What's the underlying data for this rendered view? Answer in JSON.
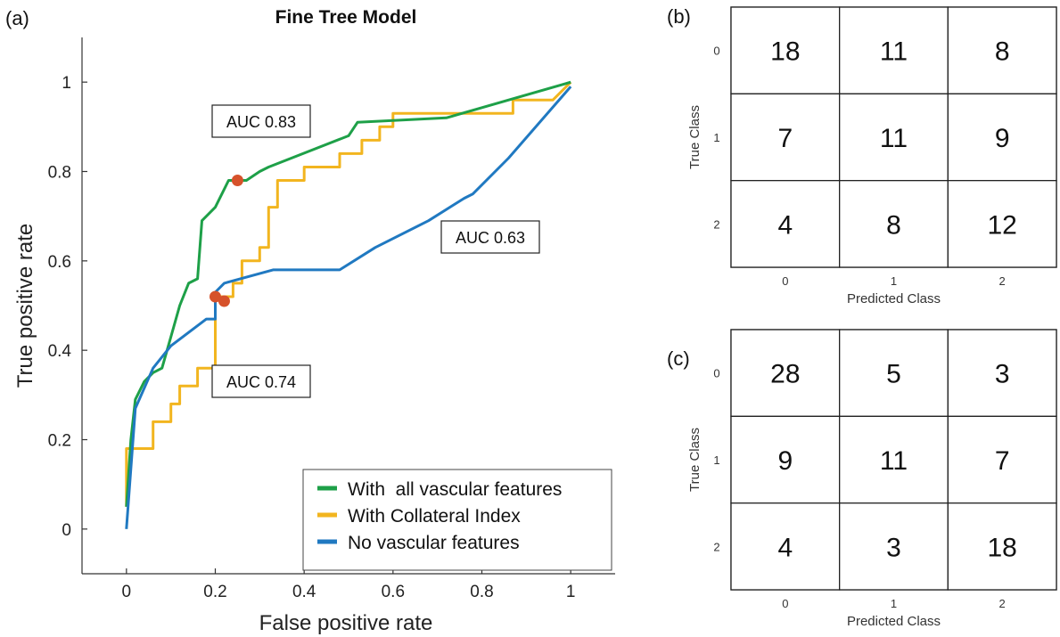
{
  "panels": {
    "a": "(a)",
    "b": "(b)",
    "c": "(c)"
  },
  "chart_data": [
    {
      "type": "line",
      "title": "Fine Tree Model",
      "xlabel": "False positive rate",
      "ylabel": "True positive rate",
      "xlim": [
        -0.1,
        1.1
      ],
      "ylim": [
        -0.1,
        1.1
      ],
      "xticks": [
        0,
        0.2,
        0.4,
        0.6,
        0.8,
        1
      ],
      "xtick_labels": [
        "0",
        "0.2",
        "0.4",
        "0.6",
        "0.8",
        "1"
      ],
      "yticks": [
        0,
        0.2,
        0.4,
        0.6,
        0.8,
        1
      ],
      "ytick_labels": [
        "0",
        "0.2",
        "0.4",
        "0.6",
        "0.8",
        "1"
      ],
      "grid": false,
      "legend_position": "bottom-right",
      "series": [
        {
          "name": "With  all vascular features",
          "color": "#1ea048",
          "points": [
            [
              0,
              0.05
            ],
            [
              0.01,
              0.2
            ],
            [
              0.02,
              0.29
            ],
            [
              0.04,
              0.33
            ],
            [
              0.06,
              0.35
            ],
            [
              0.08,
              0.36
            ],
            [
              0.1,
              0.43
            ],
            [
              0.12,
              0.5
            ],
            [
              0.14,
              0.55
            ],
            [
              0.16,
              0.56
            ],
            [
              0.17,
              0.69
            ],
            [
              0.2,
              0.72
            ],
            [
              0.23,
              0.78
            ],
            [
              0.27,
              0.78
            ],
            [
              0.3,
              0.8
            ],
            [
              0.32,
              0.81
            ],
            [
              0.5,
              0.88
            ],
            [
              0.52,
              0.91
            ],
            [
              0.72,
              0.92
            ],
            [
              1,
              1
            ]
          ],
          "marker": [
            0.25,
            0.78
          ]
        },
        {
          "name": "With Collateral Index",
          "color": "#f2b51f",
          "points": [
            [
              0,
              0.05
            ],
            [
              0,
              0.18
            ],
            [
              0.06,
              0.18
            ],
            [
              0.06,
              0.24
            ],
            [
              0.1,
              0.24
            ],
            [
              0.1,
              0.28
            ],
            [
              0.12,
              0.28
            ],
            [
              0.12,
              0.32
            ],
            [
              0.16,
              0.32
            ],
            [
              0.16,
              0.36
            ],
            [
              0.2,
              0.36
            ],
            [
              0.2,
              0.52
            ],
            [
              0.22,
              0.52
            ],
            [
              0.24,
              0.52
            ],
            [
              0.24,
              0.55
            ],
            [
              0.26,
              0.55
            ],
            [
              0.26,
              0.6
            ],
            [
              0.3,
              0.6
            ],
            [
              0.3,
              0.63
            ],
            [
              0.32,
              0.63
            ],
            [
              0.32,
              0.72
            ],
            [
              0.34,
              0.72
            ],
            [
              0.34,
              0.78
            ],
            [
              0.4,
              0.78
            ],
            [
              0.4,
              0.81
            ],
            [
              0.48,
              0.81
            ],
            [
              0.48,
              0.84
            ],
            [
              0.53,
              0.84
            ],
            [
              0.53,
              0.87
            ],
            [
              0.57,
              0.87
            ],
            [
              0.57,
              0.9
            ],
            [
              0.6,
              0.9
            ],
            [
              0.6,
              0.93
            ],
            [
              0.87,
              0.93
            ],
            [
              0.87,
              0.96
            ],
            [
              0.96,
              0.96
            ],
            [
              0.97,
              0.97
            ],
            [
              1,
              1
            ]
          ],
          "marker": [
            0.22,
            0.51
          ]
        },
        {
          "name": "No vascular features",
          "color": "#2079c1",
          "points": [
            [
              0,
              0
            ],
            [
              0.02,
              0.27
            ],
            [
              0.06,
              0.36
            ],
            [
              0.1,
              0.41
            ],
            [
              0.18,
              0.47
            ],
            [
              0.2,
              0.47
            ],
            [
              0.2,
              0.53
            ],
            [
              0.22,
              0.55
            ],
            [
              0.33,
              0.58
            ],
            [
              0.48,
              0.58
            ],
            [
              0.56,
              0.63
            ],
            [
              0.68,
              0.69
            ],
            [
              0.76,
              0.74
            ],
            [
              0.78,
              0.75
            ],
            [
              0.86,
              0.83
            ],
            [
              1,
              0.99
            ]
          ],
          "marker": [
            0.2,
            0.52
          ]
        }
      ],
      "annotations": [
        {
          "text": "AUC 0.83"
        },
        {
          "text": "AUC 0.63"
        },
        {
          "text": "AUC 0.74"
        }
      ]
    },
    {
      "type": "heatmap",
      "panel": "(b)",
      "xlabel": "Predicted Class",
      "ylabel": "True Class",
      "classes": [
        "0",
        "1",
        "2"
      ],
      "values": [
        [
          18,
          11,
          8
        ],
        [
          7,
          11,
          9
        ],
        [
          4,
          8,
          12
        ]
      ]
    },
    {
      "type": "heatmap",
      "panel": "(c)",
      "xlabel": "Predicted Class",
      "ylabel": "True Class",
      "classes": [
        "0",
        "1",
        "2"
      ],
      "values": [
        [
          28,
          5,
          3
        ],
        [
          9,
          11,
          7
        ],
        [
          4,
          3,
          18
        ]
      ]
    }
  ],
  "marker_color": "#d6522b"
}
